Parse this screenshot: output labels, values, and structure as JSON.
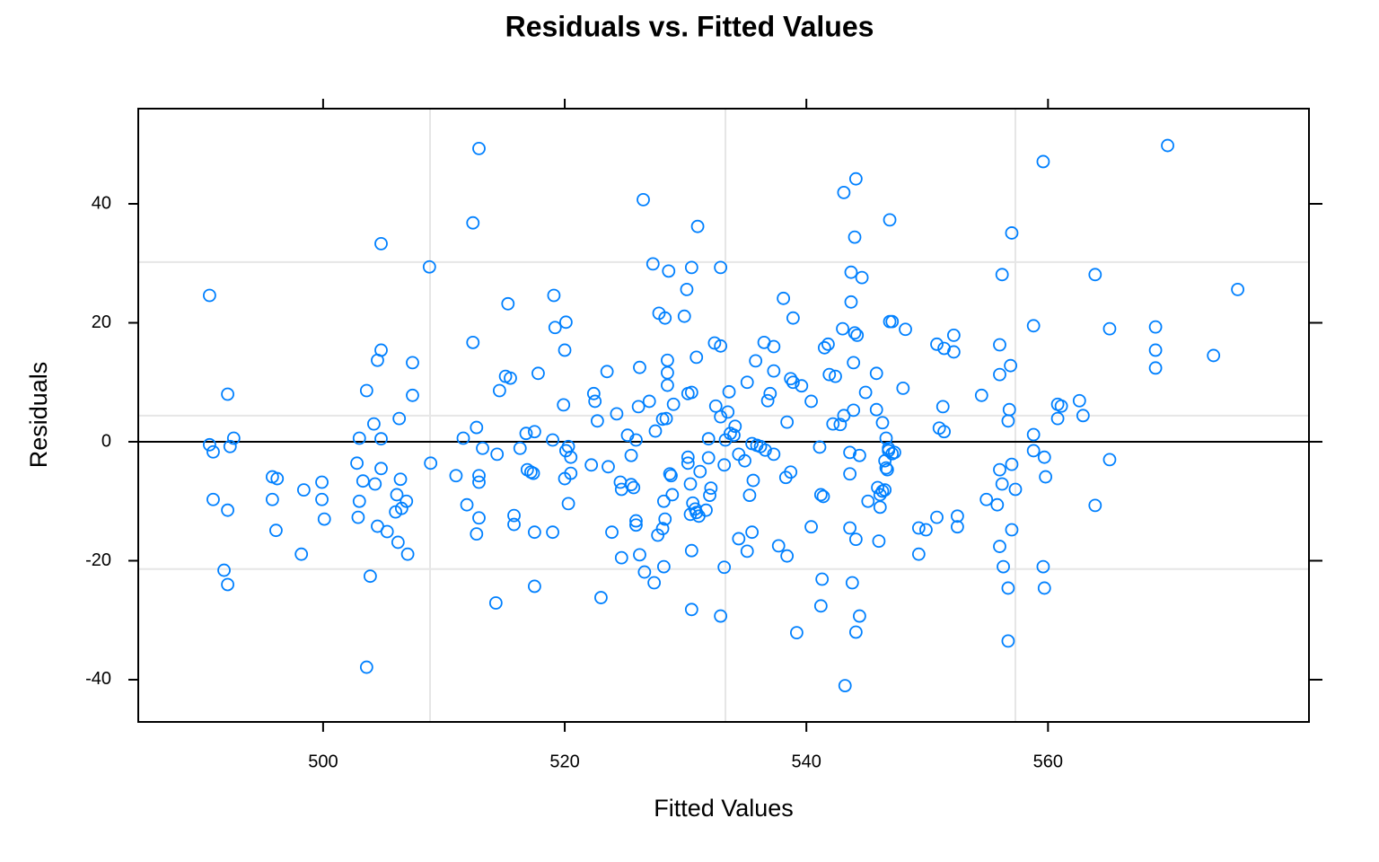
{
  "chart_data": {
    "type": "scatter",
    "title": "Residuals vs. Fitted Values",
    "x_label": "Fitted Values",
    "y_label": "Residuals",
    "xlim": [
      484.7,
      581.6
    ],
    "ylim": [
      -47.1,
      56.0
    ],
    "xticks": [
      500,
      520,
      540,
      560
    ],
    "yticks": [
      -40,
      -20,
      0,
      20,
      40
    ],
    "grid_lines": {
      "x": [
        508.85,
        533.3,
        557.3
      ],
      "y": [
        30.2,
        4.4,
        -21.4
      ]
    },
    "reference_line": 0,
    "x": [
      490.6,
      490.6,
      490.9,
      490.9,
      491.8,
      492.1,
      492.1,
      492.1,
      492.3,
      492.6,
      495.8,
      495.8,
      496.1,
      496.2,
      498.2,
      498.4,
      499.9,
      499.9,
      500.1,
      502.8,
      502.9,
      503.0,
      503.0,
      503.3,
      503.6,
      503.6,
      503.9,
      504.2,
      504.3,
      504.5,
      504.5,
      504.8,
      504.8,
      504.8,
      504.8,
      505.3,
      506.0,
      506.1,
      506.2,
      506.3,
      506.4,
      506.5,
      506.9,
      507.0,
      507.4,
      507.4,
      508.8,
      508.9,
      511.0,
      511.6,
      511.9,
      512.4,
      512.4,
      512.7,
      512.9,
      512.7,
      512.9,
      512.9,
      512.9,
      513.2,
      514.3,
      514.4,
      514.6,
      515.1,
      515.3,
      515.5,
      515.8,
      515.8,
      516.3,
      516.8,
      516.9,
      517.2,
      517.4,
      517.5,
      517.5,
      517.5,
      517.8,
      519.0,
      519.0,
      519.1,
      519.2,
      519.9,
      520.1,
      520.0,
      520.0,
      520.1,
      520.3,
      520.3,
      520.5,
      520.5,
      522.2,
      522.4,
      522.5,
      522.7,
      523.0,
      523.5,
      523.6,
      523.9,
      524.3,
      524.6,
      524.7,
      524.7,
      525.2,
      525.5,
      525.5,
      525.7,
      525.9,
      525.9,
      525.9,
      526.1,
      526.2,
      526.2,
      526.5,
      526.6,
      527.0,
      527.3,
      527.5,
      527.4,
      527.7,
      527.8,
      528.1,
      528.1,
      528.2,
      528.2,
      528.3,
      528.3,
      528.4,
      528.5,
      528.5,
      528.5,
      528.6,
      528.7,
      528.8,
      528.9,
      529.0,
      529.9,
      530.1,
      530.2,
      530.2,
      530.2,
      530.4,
      530.4,
      530.5,
      530.5,
      530.5,
      530.5,
      530.6,
      530.8,
      530.9,
      530.9,
      531.0,
      531.1,
      531.2,
      531.7,
      531.9,
      531.9,
      532.0,
      532.1,
      532.4,
      532.5,
      532.9,
      532.9,
      532.9,
      532.9,
      533.2,
      533.2,
      533.3,
      533.5,
      533.6,
      533.7,
      534.0,
      534.1,
      534.4,
      534.4,
      534.9,
      535.1,
      535.1,
      535.3,
      535.5,
      535.5,
      535.6,
      535.8,
      535.9,
      536.2,
      536.5,
      536.6,
      536.8,
      537.0,
      537.3,
      537.3,
      537.3,
      537.7,
      538.1,
      538.3,
      538.4,
      538.4,
      538.7,
      538.7,
      538.9,
      538.9,
      539.2,
      539.6,
      540.4,
      540.4,
      541.1,
      541.2,
      541.2,
      541.3,
      541.4,
      541.5,
      541.8,
      541.9,
      542.2,
      542.4,
      542.8,
      543.0,
      543.1,
      543.1,
      543.2,
      543.6,
      543.6,
      543.6,
      543.7,
      543.7,
      543.8,
      543.9,
      543.9,
      544.1,
      544.0,
      544.0,
      544.1,
      544.2,
      544.1,
      544.4,
      544.4,
      544.6,
      544.9,
      545.1,
      545.8,
      545.8,
      545.9,
      546.0,
      546.1,
      546.1,
      546.3,
      546.3,
      546.5,
      546.5,
      546.6,
      546.6,
      546.7,
      546.8,
      546.8,
      546.9,
      546.9,
      547.1,
      547.1,
      547.3,
      548.0,
      548.2,
      549.3,
      549.3,
      549.9,
      550.8,
      550.8,
      551.0,
      551.3,
      551.4,
      551.4,
      552.2,
      552.2,
      552.5,
      552.5,
      554.5,
      554.9,
      555.8,
      556.0,
      556.0,
      556.0,
      556.0,
      556.2,
      556.2,
      556.3,
      556.7,
      556.7,
      556.7,
      556.8,
      556.9,
      557.0,
      557.0,
      557.0,
      557.3,
      558.8,
      558.8,
      558.8,
      559.6,
      559.6,
      559.7,
      559.7,
      559.8,
      560.8,
      560.8,
      561.1,
      562.6,
      562.9,
      563.9,
      563.9,
      565.1,
      565.1,
      568.9,
      568.9,
      568.9,
      569.9,
      573.7,
      575.7
    ],
    "series": [
      {
        "color": "#0080ff",
        "values": [
          24.6,
          -0.5,
          -1.7,
          -9.7,
          -21.6,
          8.0,
          -11.5,
          -24.0,
          -0.8,
          0.6,
          -5.9,
          -9.7,
          -14.9,
          -6.2,
          -18.9,
          -8.1,
          -6.8,
          -9.7,
          -13.0,
          -3.6,
          -12.7,
          0.6,
          -10.0,
          -6.6,
          -37.9,
          8.6,
          -22.6,
          3.0,
          -7.1,
          13.7,
          -14.2,
          33.3,
          15.4,
          0.5,
          -4.5,
          -15.1,
          -11.8,
          -8.9,
          -16.9,
          3.9,
          -6.3,
          -11.2,
          -10.0,
          -18.9,
          13.3,
          7.8,
          29.4,
          -3.6,
          -5.7,
          0.6,
          -10.6,
          36.8,
          16.7,
          2.4,
          -12.8,
          -15.5,
          49.3,
          -5.7,
          -6.8,
          -1.1,
          -27.1,
          -2.1,
          8.6,
          11.0,
          23.2,
          10.7,
          -12.4,
          -13.9,
          -1.1,
          1.4,
          -4.7,
          -5.1,
          -5.3,
          1.7,
          -15.2,
          -24.3,
          11.5,
          0.3,
          -15.2,
          24.6,
          19.2,
          6.2,
          20.1,
          15.4,
          -6.2,
          -1.5,
          -0.8,
          -10.4,
          -2.6,
          -5.3,
          -3.9,
          8.1,
          6.8,
          3.5,
          -26.2,
          11.8,
          -4.2,
          -15.2,
          4.7,
          -6.8,
          -19.5,
          -8.0,
          1.1,
          -7.2,
          -2.3,
          -7.7,
          -13.3,
          -14.0,
          0.3,
          5.9,
          12.5,
          -19.0,
          40.7,
          -21.9,
          6.8,
          29.9,
          1.8,
          -23.7,
          -15.7,
          21.6,
          3.8,
          -14.6,
          -10.0,
          -21.0,
          -13.0,
          20.8,
          3.9,
          11.6,
          9.5,
          13.7,
          28.7,
          -5.4,
          -5.7,
          -8.9,
          6.3,
          21.1,
          25.6,
          -2.6,
          -3.6,
          8.1,
          -7.1,
          -12.2,
          29.3,
          8.3,
          -28.2,
          -18.3,
          -10.3,
          -11.3,
          14.2,
          -11.9,
          36.2,
          -12.5,
          -5.0,
          -11.5,
          0.5,
          -2.7,
          -9.0,
          -7.8,
          16.6,
          6.0,
          29.3,
          16.1,
          4.2,
          -29.3,
          -3.9,
          -21.1,
          0.3,
          5.0,
          8.4,
          1.4,
          1.1,
          2.6,
          -2.1,
          -16.3,
          -3.2,
          -18.4,
          10.0,
          -9.0,
          -0.3,
          -15.2,
          -6.5,
          13.6,
          -0.6,
          -0.8,
          16.7,
          -1.4,
          6.9,
          8.1,
          11.9,
          -2.1,
          16.0,
          -17.5,
          24.1,
          -6.0,
          3.3,
          -19.2,
          10.6,
          -5.1,
          20.8,
          10.0,
          -32.1,
          9.4,
          6.8,
          -14.3,
          -0.9,
          -8.9,
          -27.6,
          -23.1,
          -9.2,
          15.8,
          16.4,
          11.3,
          3.0,
          11.0,
          2.9,
          19.0,
          41.9,
          4.4,
          -41.0,
          -1.8,
          -14.5,
          -5.4,
          28.5,
          23.5,
          -23.7,
          13.3,
          5.3,
          44.2,
          34.4,
          18.3,
          -32.0,
          17.9,
          -16.4,
          -29.3,
          -2.3,
          27.6,
          8.3,
          -10.0,
          11.5,
          5.4,
          -7.7,
          -16.7,
          -8.9,
          -11.0,
          -8.3,
          3.2,
          -8.1,
          -3.2,
          -4.4,
          0.6,
          -4.7,
          -1.1,
          -1.5,
          37.3,
          20.2,
          20.2,
          -2.0,
          -1.8,
          9.0,
          18.9,
          -14.5,
          -18.9,
          -14.8,
          -12.7,
          16.4,
          2.3,
          5.9,
          15.7,
          1.7,
          17.9,
          15.1,
          -12.5,
          -14.3,
          7.8,
          -9.7,
          -10.6,
          16.3,
          11.3,
          -4.7,
          -17.6,
          28.1,
          -7.1,
          -21.0,
          -24.6,
          -33.5,
          3.5,
          5.4,
          12.8,
          35.1,
          -3.8,
          -14.8,
          -8.0,
          19.5,
          1.2,
          -1.5,
          47.1,
          -21.0,
          -24.6,
          -2.6,
          -5.9,
          6.3,
          3.9,
          6.0,
          6.9,
          4.4,
          28.1,
          -10.7,
          19.0,
          -3.0,
          19.3,
          15.4,
          12.4,
          49.8,
          14.5,
          25.6
        ]
      }
    ]
  }
}
